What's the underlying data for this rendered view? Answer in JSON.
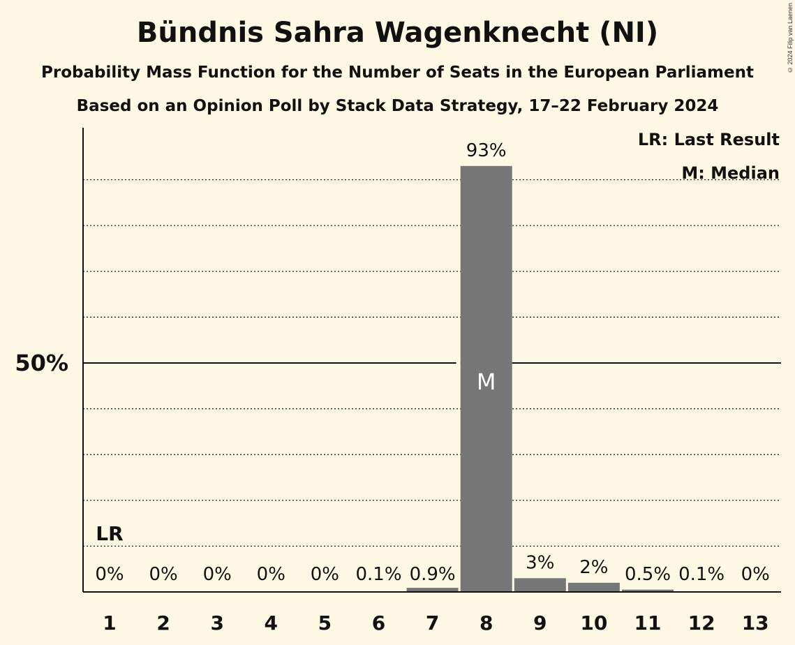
{
  "header": {
    "title": "Bündnis Sahra Wagenknecht (NI)",
    "subtitle": "Probability Mass Function for the Number of Seats in the European Parliament",
    "source": "Based on an Opinion Poll by Stack Data Strategy, 17–22 February 2024",
    "copyright": "© 2024 Filip van Laenen"
  },
  "colors": {
    "bar": "#767676",
    "background": "#fdf8e3"
  },
  "chart_data": {
    "type": "bar",
    "categories": [
      "1",
      "2",
      "3",
      "4",
      "5",
      "6",
      "7",
      "8",
      "9",
      "10",
      "11",
      "12",
      "13"
    ],
    "values": [
      0,
      0,
      0,
      0,
      0,
      0.1,
      0.9,
      93,
      3,
      2,
      0.5,
      0.1,
      0
    ],
    "data_labels": [
      "0%",
      "0%",
      "0%",
      "0%",
      "0%",
      "0.1%",
      "0.9%",
      "93%",
      "3%",
      "2%",
      "0.5%",
      "0.1%",
      "0%"
    ],
    "ylim": [
      0,
      100
    ],
    "y_tick_labels": [
      {
        "value": 50,
        "label": "50%"
      }
    ],
    "grid": "dotted every 10%",
    "last_result": {
      "category": "1",
      "label": "LR"
    },
    "median": {
      "category": "8",
      "label": "M"
    },
    "legend": [
      "LR: Last Result",
      "M: Median"
    ],
    "legend_position": "top-right"
  }
}
